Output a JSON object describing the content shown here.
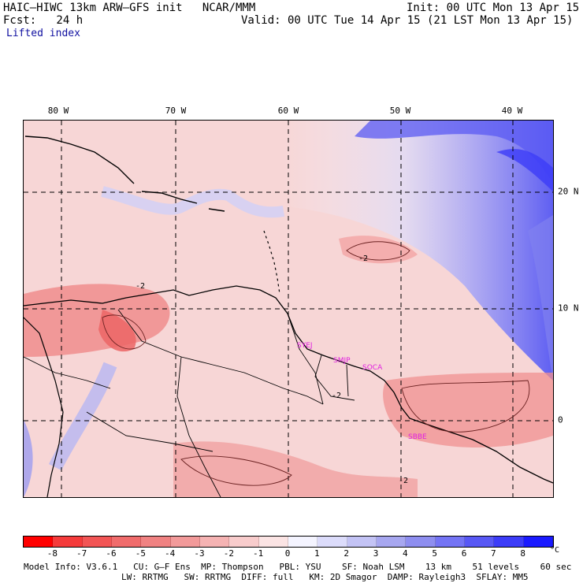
{
  "header": {
    "model_line": "HAIC–HIWC 13km ARW–GFS init   NCAR/MMM",
    "init_line": "Init: 00 UTC Mon 13 Apr 15",
    "fcst_line": "Fcst:   24 h",
    "valid_line": "Valid: 00 UTC Tue 14 Apr 15 (21 LST Mon 13 Apr 15)",
    "field_name": "Lifted index"
  },
  "map": {
    "lon_ticks": [
      "80 W",
      "70 W",
      "60 W",
      "50 W",
      "40 W"
    ],
    "lat_ticks": [
      "20 N",
      "10 N",
      "0"
    ],
    "stations": [
      "SYEJ",
      "SMJP",
      "SOCA",
      "SBBE"
    ],
    "contour_labels": [
      "-2",
      "-2",
      "-2",
      "-2"
    ]
  },
  "colorbar": {
    "labels": [
      "-8",
      "-7",
      "-6",
      "-5",
      "-4",
      "-3",
      "-2",
      "-1",
      "0",
      "1",
      "2",
      "3",
      "4",
      "5",
      "6",
      "7",
      "8"
    ],
    "colors": [
      "#ff0000",
      "#f53b3b",
      "#f25555",
      "#f06c6c",
      "#f08282",
      "#f29a9a",
      "#f5b3b3",
      "#f8cccc",
      "#fbe4e4",
      "#f4f4ff",
      "#dcdcfb",
      "#c3c3f5",
      "#a7a7f0",
      "#8e8ef0",
      "#7474f5",
      "#5858f5",
      "#3c3cf8",
      "#1a1aff"
    ],
    "unit": "°C"
  },
  "footer": {
    "line1": "Model Info: V3.6.1   CU: G–F Ens  MP: Thompson   PBL: YSU    SF: Noah LSM    13 km    51 levels    60 sec",
    "line2": "LW: RRTMG   SW: RRTMG  DIFF: full   KM: 2D Smagor  DAMP: Rayleigh3  SFLAY: MM5"
  }
}
